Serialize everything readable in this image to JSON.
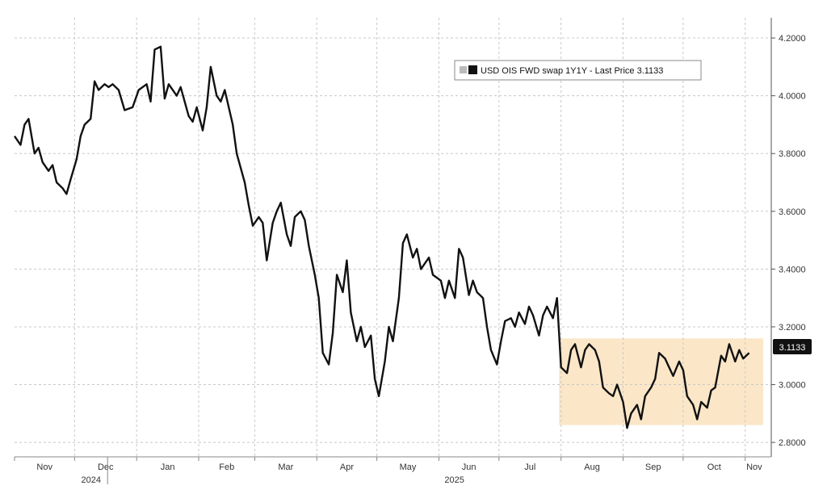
{
  "chart_data": {
    "type": "line",
    "legend": "USD OIS FWD swap 1Y1Y - Last Price 3.1133",
    "last_price_label": "3.1133",
    "x_month_labels": [
      "Nov",
      "Dec",
      "Jan",
      "Feb",
      "Mar",
      "Apr",
      "May",
      "Jun",
      "Jul",
      "Aug",
      "Sep",
      "Oct",
      "Nov"
    ],
    "year_labels": [
      {
        "label": "2024",
        "month": "Dec"
      },
      {
        "label": "2025",
        "month": "Jun"
      }
    ],
    "y_tick_labels": [
      "2.8000",
      "3.0000",
      "3.2000",
      "3.4000",
      "3.6000",
      "3.8000",
      "4.0000",
      "4.2000"
    ],
    "ylim": [
      2.75,
      4.27
    ],
    "grid": true,
    "y_axis_side": "right",
    "highlight": {
      "start": "2025-07-31",
      "end": "2025-11-10",
      "ymin": 2.86,
      "ymax": 3.16,
      "color": "#fbe7c8"
    },
    "line_color": "#111111",
    "series": [
      {
        "values": [
          [
            "2024-11-01",
            3.86
          ],
          [
            "2024-11-04",
            3.83
          ],
          [
            "2024-11-06",
            3.9
          ],
          [
            "2024-11-08",
            3.92
          ],
          [
            "2024-11-11",
            3.8
          ],
          [
            "2024-11-13",
            3.82
          ],
          [
            "2024-11-15",
            3.77
          ],
          [
            "2024-11-18",
            3.74
          ],
          [
            "2024-11-20",
            3.76
          ],
          [
            "2024-11-22",
            3.7
          ],
          [
            "2024-11-25",
            3.68
          ],
          [
            "2024-11-27",
            3.66
          ],
          [
            "2024-11-29",
            3.71
          ],
          [
            "2024-12-02",
            3.78
          ],
          [
            "2024-12-04",
            3.86
          ],
          [
            "2024-12-06",
            3.9
          ],
          [
            "2024-12-09",
            3.92
          ],
          [
            "2024-12-11",
            4.05
          ],
          [
            "2024-12-13",
            4.02
          ],
          [
            "2024-12-16",
            4.04
          ],
          [
            "2024-12-18",
            4.03
          ],
          [
            "2024-12-20",
            4.04
          ],
          [
            "2024-12-23",
            4.02
          ],
          [
            "2024-12-26",
            3.95
          ],
          [
            "2024-12-30",
            3.96
          ],
          [
            "2025-01-02",
            4.02
          ],
          [
            "2025-01-06",
            4.04
          ],
          [
            "2025-01-08",
            3.98
          ],
          [
            "2025-01-10",
            4.16
          ],
          [
            "2025-01-13",
            4.17
          ],
          [
            "2025-01-15",
            3.99
          ],
          [
            "2025-01-17",
            4.04
          ],
          [
            "2025-01-21",
            4.0
          ],
          [
            "2025-01-23",
            4.03
          ],
          [
            "2025-01-27",
            3.93
          ],
          [
            "2025-01-29",
            3.91
          ],
          [
            "2025-01-31",
            3.96
          ],
          [
            "2025-02-03",
            3.88
          ],
          [
            "2025-02-05",
            3.96
          ],
          [
            "2025-02-07",
            4.1
          ],
          [
            "2025-02-10",
            4.0
          ],
          [
            "2025-02-12",
            3.98
          ],
          [
            "2025-02-14",
            4.02
          ],
          [
            "2025-02-18",
            3.9
          ],
          [
            "2025-02-20",
            3.8
          ],
          [
            "2025-02-24",
            3.7
          ],
          [
            "2025-02-26",
            3.62
          ],
          [
            "2025-02-28",
            3.55
          ],
          [
            "2025-03-03",
            3.58
          ],
          [
            "2025-03-05",
            3.56
          ],
          [
            "2025-03-07",
            3.43
          ],
          [
            "2025-03-10",
            3.56
          ],
          [
            "2025-03-12",
            3.6
          ],
          [
            "2025-03-14",
            3.63
          ],
          [
            "2025-03-17",
            3.52
          ],
          [
            "2025-03-19",
            3.48
          ],
          [
            "2025-03-21",
            3.58
          ],
          [
            "2025-03-24",
            3.6
          ],
          [
            "2025-03-26",
            3.57
          ],
          [
            "2025-03-28",
            3.48
          ],
          [
            "2025-03-31",
            3.38
          ],
          [
            "2025-04-02",
            3.3
          ],
          [
            "2025-04-04",
            3.11
          ],
          [
            "2025-04-07",
            3.07
          ],
          [
            "2025-04-09",
            3.18
          ],
          [
            "2025-04-11",
            3.38
          ],
          [
            "2025-04-14",
            3.32
          ],
          [
            "2025-04-16",
            3.43
          ],
          [
            "2025-04-18",
            3.25
          ],
          [
            "2025-04-21",
            3.15
          ],
          [
            "2025-04-23",
            3.2
          ],
          [
            "2025-04-25",
            3.13
          ],
          [
            "2025-04-28",
            3.17
          ],
          [
            "2025-04-30",
            3.02
          ],
          [
            "2025-05-02",
            2.96
          ],
          [
            "2025-05-05",
            3.08
          ],
          [
            "2025-05-07",
            3.2
          ],
          [
            "2025-05-09",
            3.15
          ],
          [
            "2025-05-12",
            3.3
          ],
          [
            "2025-05-14",
            3.49
          ],
          [
            "2025-05-16",
            3.52
          ],
          [
            "2025-05-19",
            3.44
          ],
          [
            "2025-05-21",
            3.47
          ],
          [
            "2025-05-23",
            3.4
          ],
          [
            "2025-05-27",
            3.44
          ],
          [
            "2025-05-29",
            3.38
          ],
          [
            "2025-06-02",
            3.36
          ],
          [
            "2025-06-04",
            3.3
          ],
          [
            "2025-06-06",
            3.36
          ],
          [
            "2025-06-09",
            3.3
          ],
          [
            "2025-06-11",
            3.47
          ],
          [
            "2025-06-13",
            3.44
          ],
          [
            "2025-06-16",
            3.31
          ],
          [
            "2025-06-18",
            3.36
          ],
          [
            "2025-06-20",
            3.32
          ],
          [
            "2025-06-23",
            3.3
          ],
          [
            "2025-06-25",
            3.2
          ],
          [
            "2025-06-27",
            3.12
          ],
          [
            "2025-06-30",
            3.07
          ],
          [
            "2025-07-02",
            3.15
          ],
          [
            "2025-07-04",
            3.22
          ],
          [
            "2025-07-07",
            3.23
          ],
          [
            "2025-07-09",
            3.2
          ],
          [
            "2025-07-11",
            3.25
          ],
          [
            "2025-07-14",
            3.21
          ],
          [
            "2025-07-16",
            3.27
          ],
          [
            "2025-07-18",
            3.24
          ],
          [
            "2025-07-21",
            3.17
          ],
          [
            "2025-07-23",
            3.24
          ],
          [
            "2025-07-25",
            3.27
          ],
          [
            "2025-07-28",
            3.23
          ],
          [
            "2025-07-30",
            3.3
          ],
          [
            "2025-08-01",
            3.06
          ],
          [
            "2025-08-04",
            3.04
          ],
          [
            "2025-08-06",
            3.12
          ],
          [
            "2025-08-08",
            3.14
          ],
          [
            "2025-08-11",
            3.06
          ],
          [
            "2025-08-13",
            3.12
          ],
          [
            "2025-08-15",
            3.14
          ],
          [
            "2025-08-18",
            3.12
          ],
          [
            "2025-08-20",
            3.08
          ],
          [
            "2025-08-22",
            2.99
          ],
          [
            "2025-08-25",
            2.97
          ],
          [
            "2025-08-27",
            2.96
          ],
          [
            "2025-08-29",
            3.0
          ],
          [
            "2025-09-01",
            2.94
          ],
          [
            "2025-09-03",
            2.85
          ],
          [
            "2025-09-05",
            2.9
          ],
          [
            "2025-09-08",
            2.93
          ],
          [
            "2025-09-10",
            2.88
          ],
          [
            "2025-09-12",
            2.96
          ],
          [
            "2025-09-15",
            2.99
          ],
          [
            "2025-09-17",
            3.02
          ],
          [
            "2025-09-19",
            3.11
          ],
          [
            "2025-09-22",
            3.09
          ],
          [
            "2025-09-24",
            3.06
          ],
          [
            "2025-09-26",
            3.03
          ],
          [
            "2025-09-29",
            3.08
          ],
          [
            "2025-10-01",
            3.05
          ],
          [
            "2025-10-03",
            2.96
          ],
          [
            "2025-10-06",
            2.93
          ],
          [
            "2025-10-08",
            2.88
          ],
          [
            "2025-10-10",
            2.94
          ],
          [
            "2025-10-13",
            2.92
          ],
          [
            "2025-10-15",
            2.98
          ],
          [
            "2025-10-17",
            2.99
          ],
          [
            "2025-10-20",
            3.1
          ],
          [
            "2025-10-22",
            3.08
          ],
          [
            "2025-10-24",
            3.14
          ],
          [
            "2025-10-27",
            3.08
          ],
          [
            "2025-10-29",
            3.12
          ],
          [
            "2025-10-31",
            3.09
          ],
          [
            "2025-11-03",
            3.11
          ]
        ]
      }
    ]
  }
}
